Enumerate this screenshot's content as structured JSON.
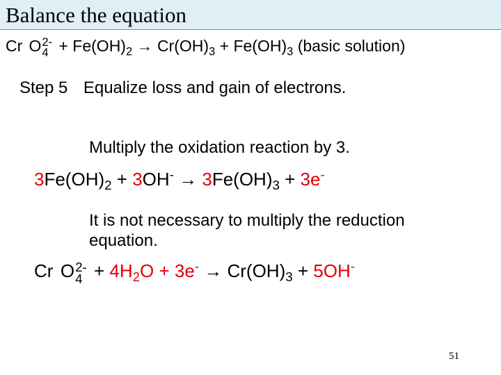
{
  "title": "Balance the equation",
  "mainEq": {
    "p1a": "Cr",
    "p1b": "O",
    "p1_top": "2-",
    "p1_bot": "4",
    "plus1": "  +  Fe(OH)",
    "sub2": "2",
    "arrow": " → Cr(OH)",
    "sub3a": "3",
    "plus2": "  +  Fe(OH)",
    "sub3b": "3",
    "tail": "  (basic solution)"
  },
  "step": {
    "label": "Step 5",
    "text": "Equalize loss and gain of electrons."
  },
  "line1": "Multiply the oxidation reaction by 3.",
  "eq1": {
    "a": "3",
    "b": "Fe(OH)",
    "s2a": "2",
    "c": " +  ",
    "d": "3",
    "e": "OH",
    "sup_minus": "-",
    "arrow": "  →   ",
    "f": "3",
    "g": "Fe(OH)",
    "s3": "3",
    "h": "  +  ",
    "i": "3",
    "j": "e",
    "sup_minus2": "-"
  },
  "line2": "It is not necessary to multiply the reduction equation.",
  "eq2": {
    "a": "Cr",
    "b": "O",
    "top": "2-",
    "bot": "4",
    "c": "  +  ",
    "d": "4",
    "e": "H",
    "s2": "2",
    "f": "O  +  ",
    "g": "3",
    "h": "e",
    "sup_minus": "-",
    "arrow": "  →   Cr(OH)",
    "s3": "3",
    "i": " +  ",
    "j": "5",
    "k": "OH",
    "sup_minus2": "-"
  },
  "pageNumber": "51"
}
